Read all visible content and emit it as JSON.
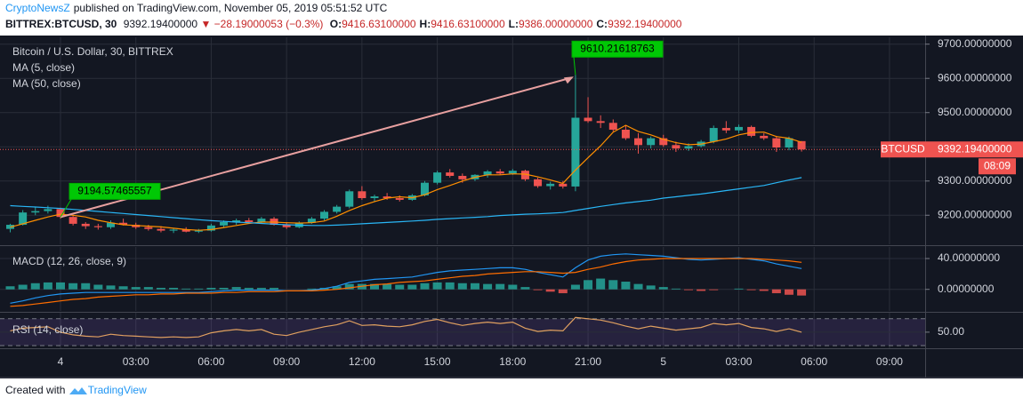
{
  "header": {
    "publisher": "CryptoNewsZ",
    "published": "published on TradingView.com, November 05, 2019 05:51:52 UTC",
    "symbol": "BITTREX:BTCUSD, 30",
    "last": "9392.19400000",
    "change": "▼ −28.19000053 (−0.3%)",
    "ohlc": [
      [
        "O:",
        "9416.63100000"
      ],
      [
        "H:",
        "9416.63100000"
      ],
      [
        "L:",
        "9386.00000000"
      ],
      [
        "C:",
        "9392.19400000"
      ]
    ]
  },
  "footer": {
    "text": "Created with",
    "brand": "TradingView"
  },
  "chart_data": [
    {
      "type": "candlestick",
      "title": "Bitcoin / U.S. Dollar, 30, BITTREX",
      "categories": [
        null,
        null,
        null,
        null,
        "4",
        null,
        null,
        null,
        null,
        null,
        "03:00",
        null,
        null,
        null,
        null,
        null,
        "06:00",
        null,
        null,
        null,
        null,
        null,
        "09:00",
        null,
        null,
        null,
        null,
        null,
        "12:00",
        null,
        null,
        null,
        null,
        null,
        "15:00",
        null,
        null,
        null,
        null,
        null,
        "18:00",
        null,
        null,
        null,
        null,
        null,
        "21:00",
        null,
        null,
        null,
        null,
        null,
        "5",
        null,
        null,
        null,
        null,
        null,
        "03:00",
        null,
        null,
        null,
        null,
        null,
        "06:00",
        null,
        null,
        null,
        null,
        null,
        "09:00"
      ],
      "open": [
        9160,
        9172,
        9208,
        9212,
        9218,
        9195,
        9175,
        9168,
        9165,
        9178,
        9172,
        9165,
        9160,
        9155,
        9158,
        9152,
        9155,
        9170,
        9180,
        9185,
        9180,
        9190,
        9172,
        9165,
        9178,
        9190,
        9210,
        9225,
        9270,
        9250,
        9255,
        9250,
        9245,
        9258,
        9295,
        9325,
        9315,
        9305,
        9318,
        9328,
        9322,
        9330,
        9305,
        9285,
        9292,
        9284,
        9485,
        9475,
        9470,
        9450,
        9425,
        9405,
        9425,
        9405,
        9395,
        9402,
        9415,
        9455,
        9448,
        9458,
        9432,
        9425,
        9398,
        9416.631,
        null,
        null,
        null,
        null,
        null,
        null,
        null
      ],
      "high": [
        9175,
        9215,
        9225,
        9228,
        9222,
        9200,
        9180,
        9175,
        9185,
        9190,
        9178,
        9172,
        9168,
        9162,
        9165,
        9160,
        9175,
        9185,
        9190,
        9192,
        9195,
        9195,
        9180,
        9182,
        9195,
        9215,
        9230,
        9275,
        9285,
        9260,
        9265,
        9258,
        9262,
        9300,
        9330,
        9335,
        9322,
        9320,
        9332,
        9335,
        9335,
        9333,
        9310,
        9298,
        9300,
        9610.21618763,
        9545,
        9492,
        9480,
        9462,
        9440,
        9430,
        9435,
        9415,
        9410,
        9420,
        9462,
        9475,
        9465,
        9462,
        9440,
        9432,
        9430,
        9416.631,
        null,
        null,
        null,
        null,
        null,
        null,
        null
      ],
      "low": [
        9150,
        9170,
        9200,
        9205,
        9190,
        9170,
        9160,
        9158,
        9160,
        9170,
        9160,
        9155,
        9150,
        9148,
        9150,
        9148,
        9152,
        9165,
        9172,
        9175,
        9176,
        9170,
        9160,
        9162,
        9175,
        9185,
        9205,
        9220,
        9245,
        9240,
        9245,
        9240,
        9242,
        9255,
        9290,
        9310,
        9295,
        9300,
        9310,
        9318,
        9318,
        9300,
        9280,
        9275,
        9278,
        9270,
        9470,
        9455,
        9445,
        9420,
        9380,
        9395,
        9400,
        9385,
        9388,
        9398,
        9410,
        9440,
        9440,
        9428,
        9420,
        9385,
        9390,
        9386,
        null,
        null,
        null,
        null,
        null,
        null,
        null
      ],
      "close": [
        9172,
        9208,
        9212,
        9218,
        9195,
        9175,
        9168,
        9165,
        9178,
        9172,
        9165,
        9160,
        9155,
        9158,
        9152,
        9155,
        9170,
        9180,
        9185,
        9180,
        9190,
        9172,
        9165,
        9178,
        9190,
        9210,
        9225,
        9270,
        9250,
        9255,
        9250,
        9245,
        9258,
        9295,
        9325,
        9315,
        9305,
        9318,
        9328,
        9322,
        9330,
        9305,
        9285,
        9292,
        9284,
        9485,
        9475,
        9470,
        9450,
        9425,
        9405,
        9425,
        9405,
        9395,
        9402,
        9415,
        9455,
        9448,
        9458,
        9432,
        9425,
        9398,
        9425,
        9392.194,
        null,
        null,
        null,
        null,
        null,
        null,
        null
      ],
      "up_color": "#26a69a",
      "down_color": "#ef5350",
      "series": [
        {
          "name": "MA (5, close)",
          "color": "#ff8f00",
          "values": [
            9165,
            9175,
            9185,
            9195,
            9203,
            9200,
            9195,
            9185,
            9178,
            9172,
            9170,
            9168,
            9166,
            9162,
            9158,
            9156,
            9158,
            9164,
            9170,
            9176,
            9180,
            9180,
            9178,
            9177,
            9178,
            9183,
            9197,
            9214,
            9228,
            9240,
            9250,
            9254,
            9251,
            9260,
            9275,
            9287,
            9300,
            9311,
            9318,
            9318,
            9321,
            9320,
            9312,
            9303,
            9293,
            9332,
            9368,
            9403,
            9443,
            9463,
            9445,
            9435,
            9422,
            9412,
            9406,
            9408,
            9415,
            9423,
            9435,
            9442,
            9443,
            9430,
            9425,
            9413,
            null,
            null,
            null,
            null,
            null,
            null,
            null
          ]
        },
        {
          "name": "MA (50, close)",
          "color": "#29b6f6",
          "values": [
            9228,
            9226,
            9224,
            9222,
            9220,
            9217,
            9214,
            9211,
            9208,
            9205,
            9202,
            9199,
            9196,
            9193,
            9190,
            9187,
            9184,
            9182,
            9180,
            9178,
            9176,
            9174,
            9172,
            9171,
            9170,
            9170,
            9171,
            9173,
            9175,
            9177,
            9179,
            9181,
            9183,
            9185,
            9188,
            9190,
            9192,
            9194,
            9196,
            9199,
            9201,
            9203,
            9204,
            9206,
            9208,
            9214,
            9220,
            9226,
            9231,
            9236,
            9240,
            9244,
            9250,
            9254,
            9258,
            9262,
            9267,
            9272,
            9277,
            9282,
            9287,
            9295,
            9303,
            9310,
            null,
            null,
            null,
            null,
            null,
            null,
            null
          ]
        }
      ],
      "ylim": [
        9115,
        9720
      ],
      "yticks": [
        {
          "value": 9200,
          "label": "9200.00000000"
        },
        {
          "value": 9300,
          "label": "9300.00000000"
        },
        {
          "value": 9400,
          "label": "9400.00000000"
        },
        {
          "value": 9500,
          "label": "9500.00000000"
        },
        {
          "value": 9600,
          "label": "9600.00000000"
        },
        {
          "value": 9700,
          "label": "9700.00000000"
        }
      ],
      "grid": true,
      "last_price": {
        "symbol": "BTCUSD",
        "value": 9392.194,
        "label": "9392.19400000",
        "countdown": "08:09"
      },
      "callouts": [
        9194.57465557,
        9610.21618763
      ],
      "callout_color": "#00c805"
    },
    {
      "type": "macd",
      "title": "MACD (12, 26, close, 9)",
      "series": [
        {
          "color": "#2196f3",
          "values": [
            -18,
            -15,
            -11,
            -8,
            -6,
            -5,
            -4,
            -4,
            -4,
            -4,
            -4,
            -4,
            -4,
            -4,
            -4,
            -4,
            -3,
            -2,
            -1,
            -1,
            -1,
            -1,
            -2,
            -2,
            -1,
            1,
            4,
            9,
            11,
            13,
            14,
            15,
            16,
            19,
            22,
            24,
            25,
            26,
            27,
            28,
            28,
            26,
            22,
            19,
            16,
            28,
            38,
            43,
            45,
            46,
            45,
            44,
            43,
            41,
            39,
            38,
            39,
            40,
            41,
            39,
            37,
            33,
            30,
            27,
            null,
            null,
            null,
            null,
            null,
            null,
            null
          ]
        },
        {
          "color": "#ff6d00",
          "values": [
            -22,
            -21,
            -19,
            -17,
            -15,
            -13,
            -12,
            -10,
            -9,
            -8,
            -7,
            -7,
            -6,
            -6,
            -5,
            -5,
            -5,
            -4,
            -4,
            -3,
            -3,
            -3,
            -2,
            -2,
            -2,
            -1,
            0,
            2,
            4,
            6,
            7,
            9,
            10,
            11,
            13,
            15,
            17,
            18,
            20,
            21,
            22,
            23,
            23,
            22,
            21,
            22,
            26,
            29,
            33,
            36,
            38,
            39,
            40,
            40,
            40,
            40,
            40,
            40,
            40,
            40,
            39,
            38,
            37,
            35,
            null,
            null,
            null,
            null,
            null,
            null,
            null
          ]
        }
      ],
      "histogram": {
        "values": [
          4,
          6,
          8,
          9,
          9,
          8,
          8,
          6,
          5,
          4,
          3,
          3,
          2,
          2,
          1,
          1,
          2,
          2,
          3,
          2,
          2,
          2,
          0,
          0,
          1,
          2,
          4,
          7,
          7,
          7,
          7,
          6,
          6,
          8,
          9,
          9,
          8,
          8,
          7,
          7,
          6,
          3,
          -1,
          -3,
          -5,
          6,
          12,
          14,
          12,
          10,
          7,
          5,
          3,
          1,
          -1,
          -2,
          -1,
          0,
          1,
          -1,
          -2,
          -5,
          -7,
          -8,
          null,
          null,
          null,
          null,
          null,
          null,
          null
        ],
        "colors": [
          "#26a69a",
          "#ef5350"
        ]
      },
      "ylim": [
        -28,
        55
      ],
      "yticks": [
        {
          "value": 0,
          "label": "0.00000000"
        },
        {
          "value": 40,
          "label": "40.00000000"
        }
      ]
    },
    {
      "type": "line",
      "title": "RSI (14, close)",
      "series": [
        {
          "color": "#e0a060",
          "values": [
            52,
            56,
            57,
            58,
            50,
            46,
            44,
            43,
            47,
            45,
            44,
            43,
            42,
            43,
            42,
            43,
            49,
            52,
            54,
            52,
            54,
            47,
            45,
            50,
            54,
            58,
            61,
            67,
            60,
            61,
            59,
            58,
            61,
            66,
            69,
            64,
            60,
            63,
            65,
            63,
            65,
            56,
            51,
            53,
            52,
            72,
            70,
            68,
            64,
            59,
            55,
            59,
            56,
            53,
            55,
            57,
            63,
            61,
            63,
            57,
            55,
            51,
            55,
            50,
            null,
            null,
            null,
            null,
            null,
            null,
            null
          ]
        }
      ],
      "levels": [
        30,
        70
      ],
      "band_color": "#7e57c2",
      "ylim": [
        26,
        79
      ],
      "yticks": [
        {
          "value": 50,
          "label": "50.00"
        }
      ]
    }
  ]
}
